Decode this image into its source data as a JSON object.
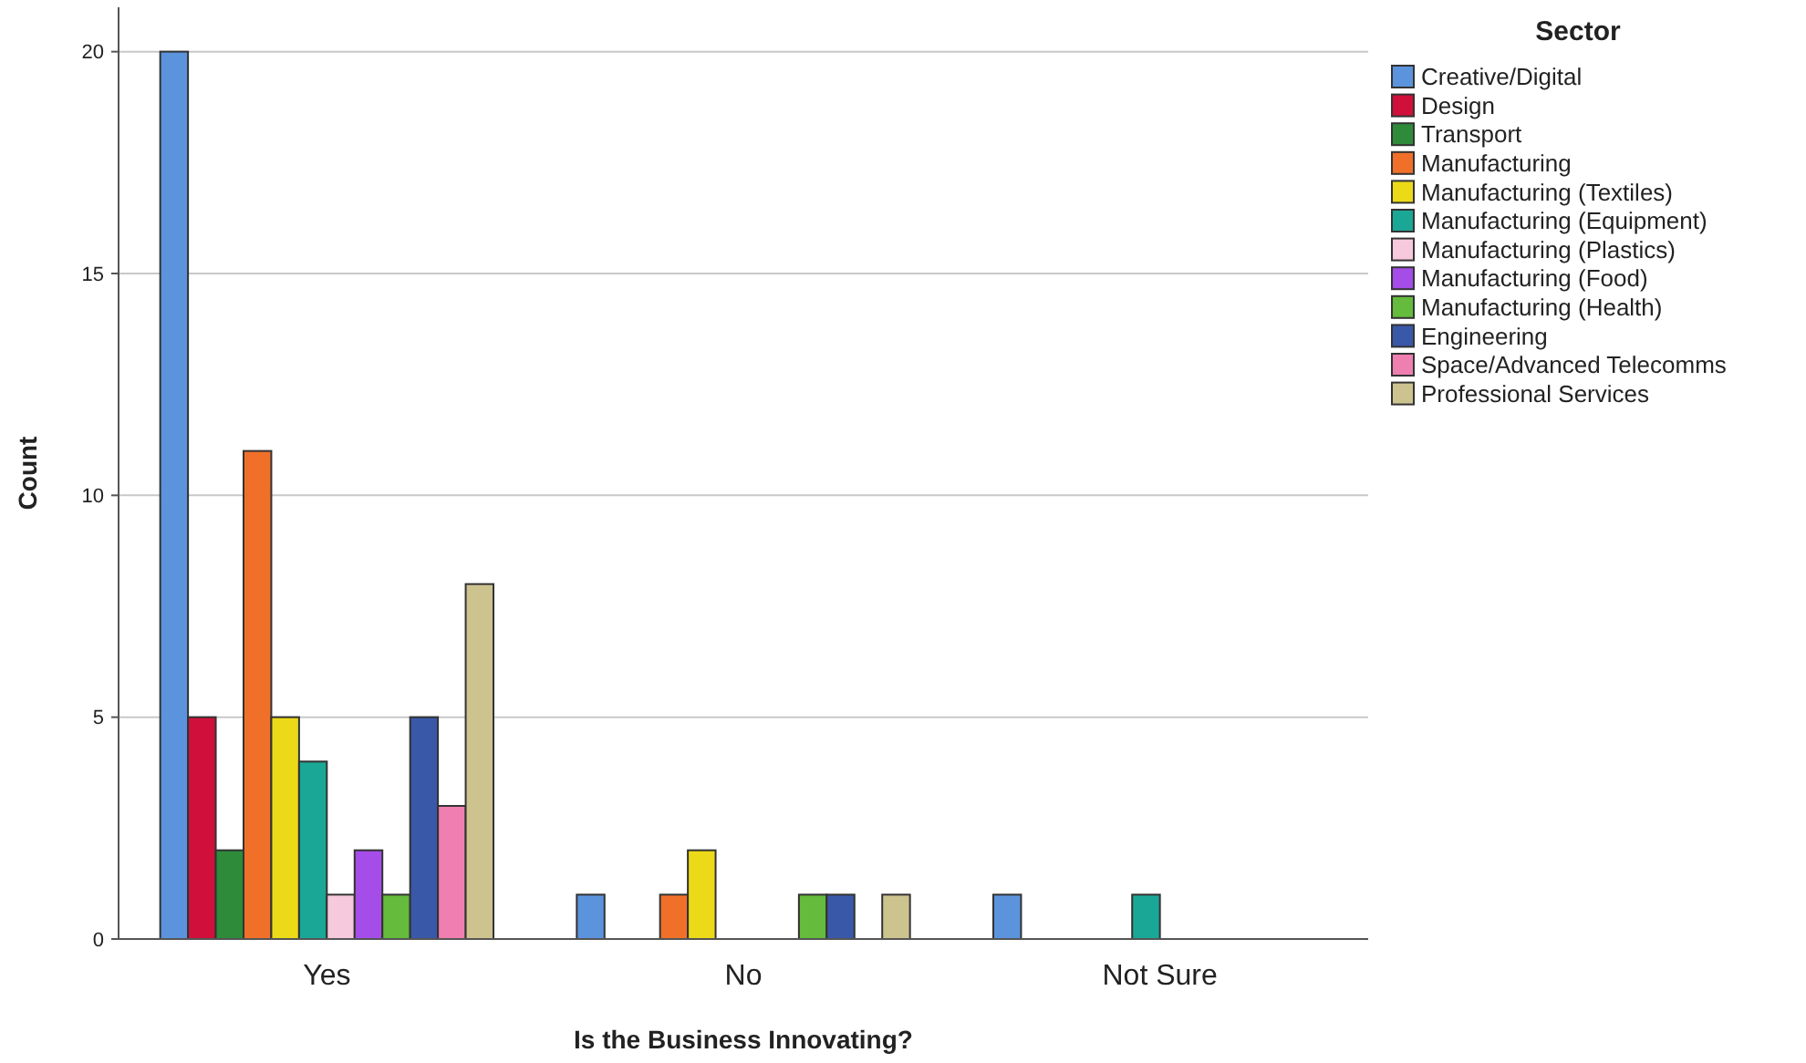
{
  "chart_data": {
    "type": "bar",
    "xlabel": "Is the Business Innovating?",
    "ylabel": "Count",
    "legend_title": "Sector",
    "categories": [
      "Yes",
      "No",
      "Not Sure"
    ],
    "series": [
      {
        "name": "Creative/Digital",
        "color": "#5b93dc",
        "values": [
          20,
          1,
          1
        ]
      },
      {
        "name": "Design",
        "color": "#d0103a",
        "values": [
          5,
          0,
          0
        ]
      },
      {
        "name": "Transport",
        "color": "#2e8b3a",
        "values": [
          2,
          0,
          0
        ]
      },
      {
        "name": "Manufacturing",
        "color": "#f0702a",
        "values": [
          11,
          1,
          0
        ]
      },
      {
        "name": "Manufacturing (Textiles)",
        "color": "#ecd918",
        "values": [
          5,
          2,
          0
        ]
      },
      {
        "name": "Manufacturing (Equipment)",
        "color": "#1aa796",
        "values": [
          4,
          0,
          1
        ]
      },
      {
        "name": "Manufacturing (Plastics)",
        "color": "#f7c9dd",
        "values": [
          1,
          0,
          0
        ]
      },
      {
        "name": "Manufacturing (Food)",
        "color": "#a44de8",
        "values": [
          2,
          0,
          0
        ]
      },
      {
        "name": "Manufacturing (Health)",
        "color": "#64bb3c",
        "values": [
          1,
          1,
          0
        ]
      },
      {
        "name": "Engineering",
        "color": "#3a58a8",
        "values": [
          5,
          1,
          0
        ]
      },
      {
        "name": "Space/Advanced Telecomms",
        "color": "#ef7fb0",
        "values": [
          3,
          0,
          0
        ]
      },
      {
        "name": "Professional Services",
        "color": "#cdc38f",
        "values": [
          8,
          1,
          0
        ]
      }
    ],
    "ylim": [
      0,
      21
    ],
    "yticks": [
      0,
      5,
      10,
      15,
      20
    ],
    "grid": "y",
    "legend": "top right"
  }
}
